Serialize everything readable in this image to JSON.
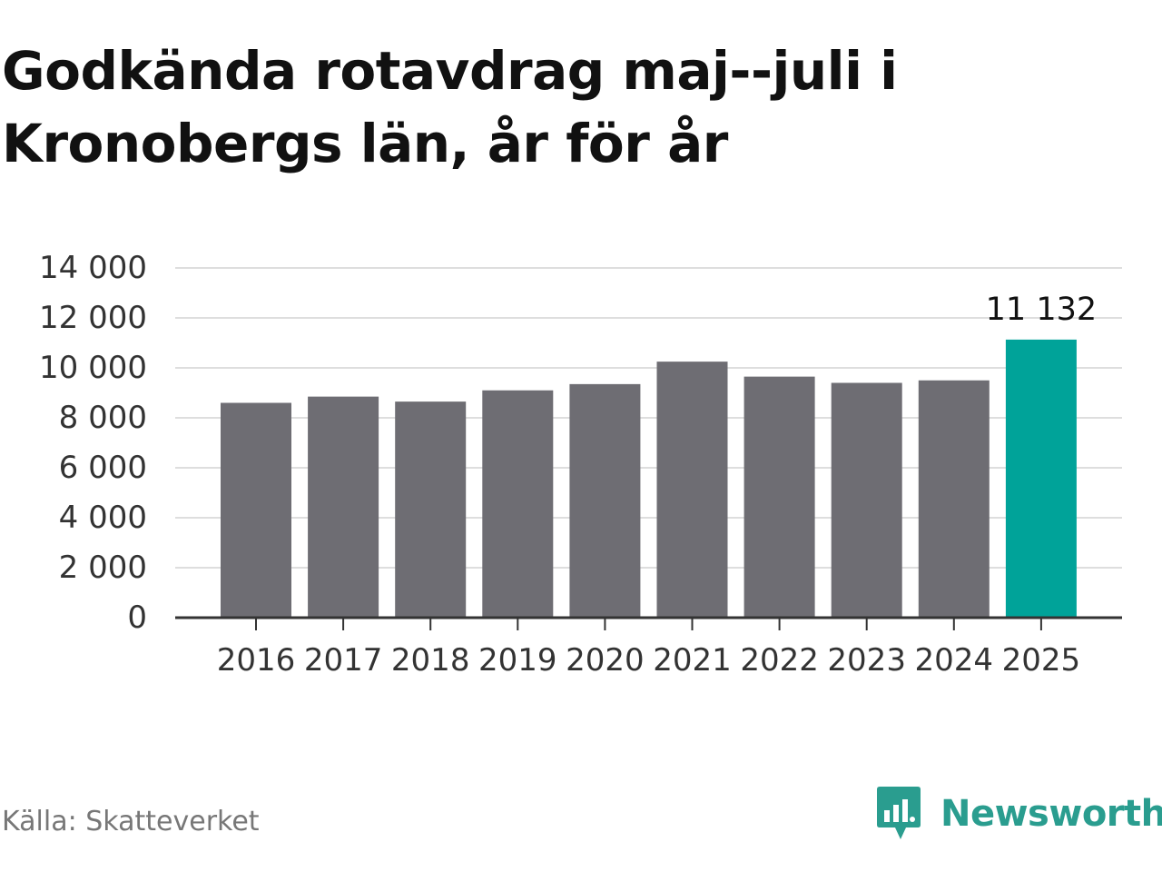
{
  "title": "Godkända rotavdrag maj--juli i Kronobergs län, år för år",
  "source": "Källa: Skatteverket",
  "brand": {
    "name": "Newsworthy",
    "icon": "newsworthy-logo-icon",
    "color": "#2a9d8f"
  },
  "colors": {
    "bar": "#6e6d73",
    "highlight": "#00a399",
    "grid": "#dedede",
    "axis": "#333333"
  },
  "chart_data": {
    "type": "bar",
    "categories": [
      "2016",
      "2017",
      "2018",
      "2019",
      "2020",
      "2021",
      "2022",
      "2023",
      "2024",
      "2025"
    ],
    "values": [
      8600,
      8850,
      8650,
      9100,
      9350,
      10250,
      9650,
      9400,
      9500,
      11132
    ],
    "highlight_index": 9,
    "data_labels": [
      {
        "index": 9,
        "text": "11 132"
      }
    ],
    "yticks": [
      0,
      2000,
      4000,
      6000,
      8000,
      10000,
      12000,
      14000
    ],
    "ytick_labels": [
      "0",
      "2 000",
      "4 000",
      "6 000",
      "8 000",
      "10 000",
      "12 000",
      "14 000"
    ],
    "ylim": [
      0,
      14000
    ],
    "grid": true,
    "legend": false,
    "xlabel": "",
    "ylabel": ""
  }
}
